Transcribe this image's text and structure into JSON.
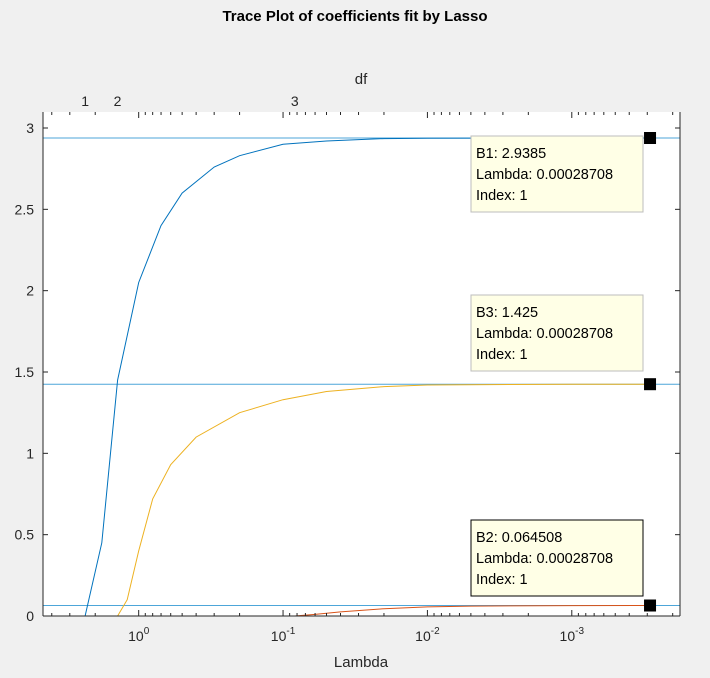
{
  "chart_data": {
    "type": "line",
    "title": "Trace Plot of coefficients fit by Lasso",
    "xlabel": "Lambda",
    "top_axis_label": "df",
    "xscale": "log",
    "xdirection": "reverse",
    "xlim": [
      4.6,
      0.000178
    ],
    "ylim": [
      0,
      3
    ],
    "x_ticks": [
      {
        "value": 1,
        "base": "10",
        "exp": "0"
      },
      {
        "value": 0.1,
        "base": "10",
        "exp": "-1"
      },
      {
        "value": 0.01,
        "base": "10",
        "exp": "-2"
      },
      {
        "value": 0.001,
        "base": "10",
        "exp": "-3"
      }
    ],
    "y_ticks": [
      {
        "value": 0,
        "label": "0"
      },
      {
        "value": 0.5,
        "label": "0.5"
      },
      {
        "value": 1,
        "label": "1"
      },
      {
        "value": 1.5,
        "label": "1.5"
      },
      {
        "value": 2,
        "label": "2"
      },
      {
        "value": 2.5,
        "label": "2.5"
      },
      {
        "value": 3,
        "label": "3"
      }
    ],
    "df_ticks": [
      {
        "lambda": 2.35,
        "label": "1"
      },
      {
        "lambda": 1.4,
        "label": "2"
      },
      {
        "lambda": 0.083,
        "label": "3"
      }
    ],
    "series": [
      {
        "key": "B1",
        "color": "#0072bd",
        "points": [
          [
            2.35,
            0
          ],
          [
            1.8,
            0.45
          ],
          [
            1.4,
            1.45
          ],
          [
            1.0,
            2.05
          ],
          [
            0.7,
            2.4
          ],
          [
            0.5,
            2.6
          ],
          [
            0.3,
            2.76
          ],
          [
            0.2,
            2.83
          ],
          [
            0.1,
            2.9
          ],
          [
            0.05,
            2.92
          ],
          [
            0.02,
            2.935
          ],
          [
            0.01,
            2.937
          ],
          [
            0.001,
            2.9385
          ],
          [
            0.00028708,
            2.9385
          ]
        ]
      },
      {
        "key": "B2",
        "color": "#d95319",
        "points": [
          [
            0.083,
            0
          ],
          [
            0.06,
            0.01
          ],
          [
            0.04,
            0.025
          ],
          [
            0.02,
            0.045
          ],
          [
            0.01,
            0.056
          ],
          [
            0.005,
            0.061
          ],
          [
            0.001,
            0.064
          ],
          [
            0.00028708,
            0.064508
          ]
        ]
      },
      {
        "key": "B3",
        "color": "#edb120",
        "points": [
          [
            1.4,
            0
          ],
          [
            1.2,
            0.1
          ],
          [
            1.0,
            0.4
          ],
          [
            0.8,
            0.72
          ],
          [
            0.6,
            0.93
          ],
          [
            0.4,
            1.1
          ],
          [
            0.2,
            1.25
          ],
          [
            0.1,
            1.33
          ],
          [
            0.05,
            1.38
          ],
          [
            0.02,
            1.41
          ],
          [
            0.01,
            1.42
          ],
          [
            0.001,
            1.425
          ],
          [
            0.00028708,
            1.425
          ]
        ]
      }
    ],
    "hlines": [
      {
        "y": 2.9385,
        "color": "#4da6d9"
      },
      {
        "y": 1.425,
        "color": "#4da6d9"
      },
      {
        "y": 0.064508,
        "color": "#4da6d9"
      }
    ],
    "datatips": [
      {
        "key": "B1",
        "lambda": 0.00028708,
        "y": 2.9385,
        "line1": "B1: 2.9385",
        "line2": "Lambda: 0.00028708",
        "line3": "Index: 1"
      },
      {
        "key": "B3",
        "lambda": 0.00028708,
        "y": 1.425,
        "line1": "B3: 1.425",
        "line2": "Lambda: 0.00028708",
        "line3": "Index: 1"
      },
      {
        "key": "B2",
        "lambda": 0.00028708,
        "y": 0.064508,
        "line1": "B2: 0.064508",
        "line2": "Lambda: 0.00028708",
        "line3": "Index: 1"
      }
    ]
  }
}
